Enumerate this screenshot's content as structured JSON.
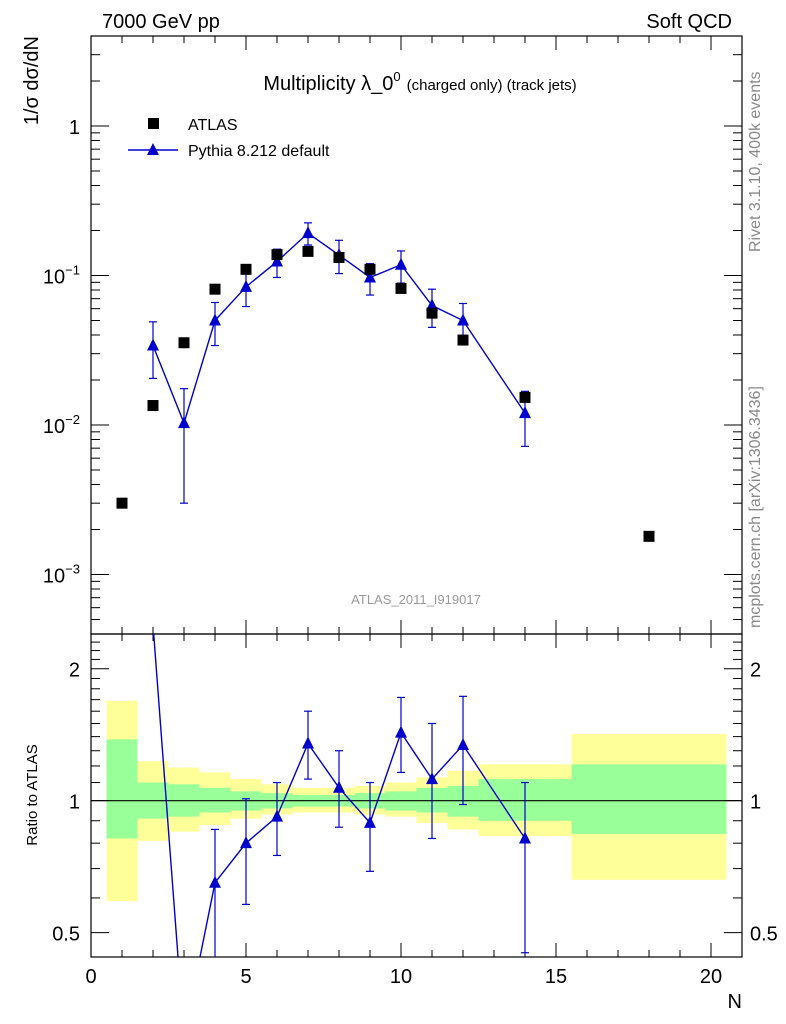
{
  "header": {
    "left": "7000 GeV pp",
    "right": "Soft QCD"
  },
  "side_text": {
    "rivet": "Rivet 3.1.10,  400k events",
    "mcplots": "mcplots.cern.ch [arXiv:1306.3436]"
  },
  "colors": {
    "data": "#000000",
    "mc": "#0000cc",
    "band_inner": "#99ff99",
    "band_outer": "#ffff99",
    "watermark": "#999999"
  },
  "chart_data": [
    {
      "type": "scatter",
      "title_main": "Multiplicity λ_0",
      "title_sup": "0",
      "title_small": "(charged only) (track jets)",
      "ylabel": "1/σ dσ/dN",
      "watermark": "ATLAS_2011_I919017",
      "yscale": "log",
      "ylim": [
        0.0004,
        4
      ],
      "xlim": [
        0,
        21
      ],
      "y_ticks": [
        {
          "v": 1,
          "label": "1"
        },
        {
          "v": 0.1,
          "label": "10",
          "sup": "−1"
        },
        {
          "v": 0.01,
          "label": "10",
          "sup": "−2"
        },
        {
          "v": 0.001,
          "label": "10",
          "sup": "−3"
        }
      ],
      "legend_position": "top-left",
      "series": [
        {
          "name": "ATLAS",
          "marker": "square",
          "x": [
            1,
            2,
            3,
            4,
            5,
            6,
            7,
            8,
            9,
            10,
            11,
            12,
            14,
            18
          ],
          "y": [
            0.003,
            0.0135,
            0.0355,
            0.081,
            0.11,
            0.138,
            0.145,
            0.132,
            0.11,
            0.082,
            0.056,
            0.037,
            0.0153,
            0.0018
          ]
        },
        {
          "name": "Pythia 8.212 default",
          "marker": "triangle",
          "x": [
            2,
            3,
            4,
            5,
            6,
            7,
            8,
            9,
            10,
            11,
            12,
            14
          ],
          "y": [
            0.034,
            0.0103,
            0.05,
            0.084,
            0.124,
            0.192,
            0.137,
            0.097,
            0.118,
            0.063,
            0.05,
            0.012
          ],
          "y_err_low": [
            0.0205,
            0.003,
            0.034,
            0.062,
            0.097,
            0.16,
            0.103,
            0.074,
            0.089,
            0.045,
            0.035,
            0.0072
          ],
          "y_err_high": [
            0.049,
            0.0175,
            0.066,
            0.106,
            0.15,
            0.225,
            0.172,
            0.12,
            0.146,
            0.081,
            0.065,
            0.0168
          ]
        }
      ]
    },
    {
      "type": "line",
      "ylabel": "Ratio to ATLAS",
      "xlabel": "N",
      "yscale": "log",
      "ylim": [
        0.44,
        2.4
      ],
      "xlim": [
        0,
        21
      ],
      "x_ticks": [
        0,
        5,
        10,
        15,
        20
      ],
      "y_ticks": [
        {
          "v": 0.5,
          "label": "0.5"
        },
        {
          "v": 1,
          "label": "1"
        },
        {
          "v": 2,
          "label": "2"
        }
      ],
      "bands": [
        {
          "xlo": 0.5,
          "xhi": 1.5,
          "outer": [
            0.59,
            1.69
          ],
          "inner": [
            0.82,
            1.38
          ]
        },
        {
          "xlo": 1.5,
          "xhi": 2.5,
          "outer": [
            0.81,
            1.23
          ],
          "inner": [
            0.91,
            1.1
          ]
        },
        {
          "xlo": 2.5,
          "xhi": 3.5,
          "outer": [
            0.85,
            1.19
          ],
          "inner": [
            0.92,
            1.09
          ]
        },
        {
          "xlo": 3.5,
          "xhi": 4.5,
          "outer": [
            0.88,
            1.16
          ],
          "inner": [
            0.94,
            1.07
          ]
        },
        {
          "xlo": 4.5,
          "xhi": 5.5,
          "outer": [
            0.91,
            1.12
          ],
          "inner": [
            0.95,
            1.05
          ]
        },
        {
          "xlo": 5.5,
          "xhi": 6.5,
          "outer": [
            0.93,
            1.09
          ],
          "inner": [
            0.96,
            1.04
          ]
        },
        {
          "xlo": 6.5,
          "xhi": 7.5,
          "outer": [
            0.94,
            1.07
          ],
          "inner": [
            0.97,
            1.03
          ]
        },
        {
          "xlo": 7.5,
          "xhi": 8.5,
          "outer": [
            0.94,
            1.07
          ],
          "inner": [
            0.97,
            1.03
          ]
        },
        {
          "xlo": 8.5,
          "xhi": 9.5,
          "outer": [
            0.93,
            1.08
          ],
          "inner": [
            0.96,
            1.04
          ]
        },
        {
          "xlo": 9.5,
          "xhi": 10.5,
          "outer": [
            0.92,
            1.1
          ],
          "inner": [
            0.95,
            1.05
          ]
        },
        {
          "xlo": 10.5,
          "xhi": 11.5,
          "outer": [
            0.89,
            1.13
          ],
          "inner": [
            0.94,
            1.07
          ]
        },
        {
          "xlo": 11.5,
          "xhi": 12.5,
          "outer": [
            0.86,
            1.17
          ],
          "inner": [
            0.92,
            1.08
          ]
        },
        {
          "xlo": 12.5,
          "xhi": 15.5,
          "outer": [
            0.83,
            1.21
          ],
          "inner": [
            0.9,
            1.12
          ]
        },
        {
          "xlo": 15.5,
          "xhi": 20.5,
          "outer": [
            0.66,
            1.42
          ],
          "inner": [
            0.84,
            1.21
          ]
        }
      ],
      "series": [
        {
          "name": "Pythia 8.212 default",
          "x": [
            2,
            3,
            4,
            5,
            6,
            7,
            8,
            9,
            10,
            11,
            12,
            14
          ],
          "y": [
            2.52,
            0.29,
            0.65,
            0.8,
            0.92,
            1.35,
            1.07,
            0.89,
            1.43,
            1.12,
            1.34,
            0.82
          ],
          "y_err_low": [
            null,
            null,
            0.37,
            0.58,
            0.75,
            1.12,
            0.87,
            0.69,
            1.16,
            0.82,
            0.98,
            0.45
          ],
          "y_err_high": [
            null,
            null,
            0.86,
            1.01,
            1.1,
            1.6,
            1.3,
            1.1,
            1.72,
            1.5,
            1.73,
            1.1
          ]
        }
      ]
    }
  ]
}
